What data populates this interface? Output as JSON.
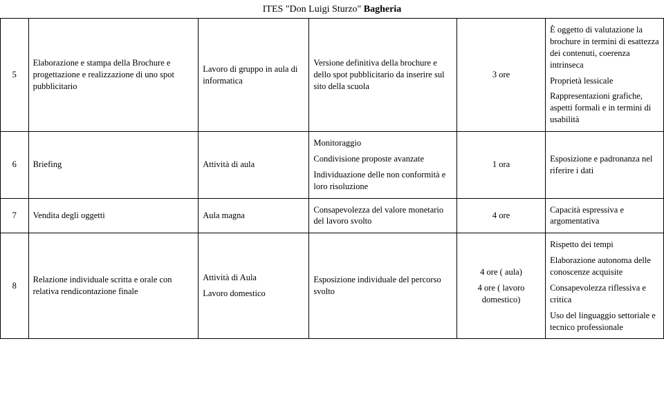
{
  "header": {
    "prefix": "ITES",
    "quoted": "\"Don Luigi Sturzo\"",
    "suffix": "Bagheria"
  },
  "table": {
    "border_color": "#000000",
    "font_family": "Times New Roman",
    "font_size_pt": 10,
    "columns": [
      38,
      230,
      150,
      200,
      120,
      160
    ],
    "rows": [
      {
        "num": "5",
        "col2": "Elaborazione e stampa della Brochure e progettazione e realizzazione di uno spot pubblicitario",
        "col3": "Lavoro di gruppo in aula di informatica",
        "col4": [
          "Versione definitiva della brochure e dello spot pubblicitario da inserire sul sito della scuola"
        ],
        "col5": "3 ore",
        "col6": [
          "È oggetto di valutazione la brochure in termini di esattezza dei contenuti, coerenza intrinseca",
          "Proprietà lessicale",
          "Rappresentazioni grafiche, aspetti formali e in termini di usabilità"
        ]
      },
      {
        "num": "6",
        "col2": "Briefing",
        "col3": "Attività di aula",
        "col4": [
          "Monitoraggio",
          "Condivisione proposte avanzate",
          "Individuazione delle non conformità e loro risoluzione"
        ],
        "col5": "1 ora",
        "col6": [
          "Esposizione e padronanza nel riferire i dati"
        ]
      },
      {
        "num": "7",
        "col2": "Vendita degli oggetti",
        "col3": "Aula magna",
        "col4": [
          "Consapevolezza del valore monetario del lavoro svolto"
        ],
        "col5": "4 ore",
        "col6": [
          "Capacità espressiva e argomentativa"
        ]
      },
      {
        "num": "8",
        "col2": "Relazione individuale scritta e orale con relativa rendicontazione finale",
        "col3_multi": [
          "Attività di Aula",
          "Lavoro domestico"
        ],
        "col4": [
          "Esposizione individuale del percorso svolto"
        ],
        "col5_multi": [
          "4 ore ( aula)",
          "4 ore ( lavoro domestico)"
        ],
        "col6": [
          "Rispetto dei tempi",
          "Elaborazione autonoma delle conoscenze acquisite",
          "Consapevolezza riflessiva e critica",
          "Uso del linguaggio settoriale e tecnico professionale"
        ]
      }
    ]
  }
}
